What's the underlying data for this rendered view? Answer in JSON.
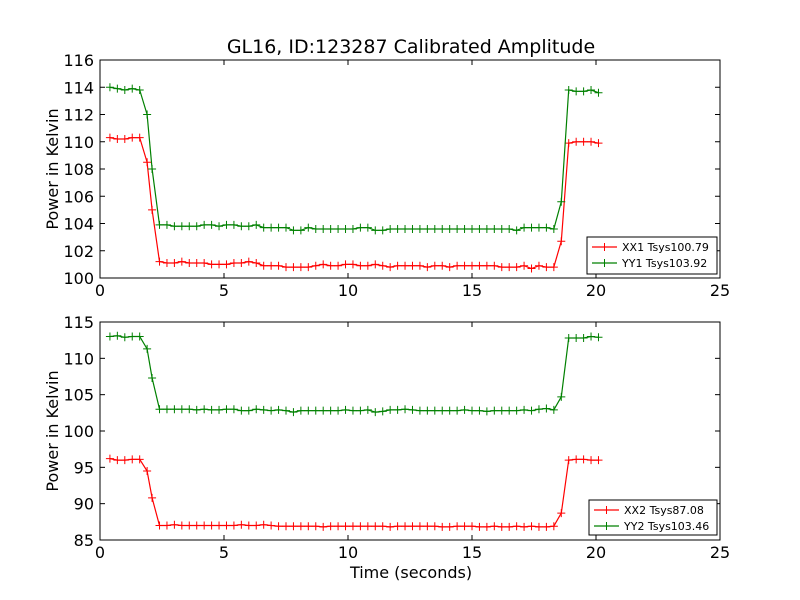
{
  "chart_data": [
    {
      "type": "line",
      "title": "GL16, ID:123287 Calibrated Amplitude",
      "xlabel": "",
      "ylabel": "Power in Kelvin",
      "xlim": [
        0,
        25
      ],
      "ylim": [
        100,
        116
      ],
      "xticks": [
        0,
        5,
        10,
        15,
        20,
        25
      ],
      "yticks": [
        100,
        102,
        104,
        106,
        108,
        110,
        112,
        114,
        116
      ],
      "grid": false,
      "legend_position": "lower-right",
      "x": [
        0.4,
        0.7,
        1.0,
        1.3,
        1.6,
        1.9,
        2.1,
        2.4,
        2.7,
        3.0,
        3.3,
        3.6,
        3.9,
        4.2,
        4.5,
        4.8,
        5.1,
        5.4,
        5.7,
        6.0,
        6.3,
        6.6,
        6.9,
        7.2,
        7.5,
        7.8,
        8.1,
        8.4,
        8.7,
        9.0,
        9.3,
        9.6,
        9.9,
        10.2,
        10.5,
        10.8,
        11.1,
        11.4,
        11.7,
        12.0,
        12.3,
        12.6,
        12.9,
        13.2,
        13.5,
        13.8,
        14.1,
        14.4,
        14.7,
        15.0,
        15.3,
        15.6,
        15.9,
        16.2,
        16.5,
        16.8,
        17.1,
        17.4,
        17.7,
        18.0,
        18.3,
        18.6,
        18.9,
        19.2,
        19.5,
        19.8,
        20.1
      ],
      "series": [
        {
          "name": "XX1 Tsys100.79",
          "color": "#ff0000",
          "values": [
            110.3,
            110.2,
            110.2,
            110.3,
            110.3,
            108.5,
            105.0,
            101.2,
            101.1,
            101.1,
            101.2,
            101.1,
            101.1,
            101.1,
            101.0,
            101.0,
            101.0,
            101.1,
            101.1,
            101.2,
            101.1,
            100.9,
            100.9,
            100.9,
            100.8,
            100.8,
            100.8,
            100.8,
            100.9,
            101.0,
            100.9,
            100.9,
            101.0,
            101.0,
            100.9,
            100.9,
            101.0,
            100.9,
            100.8,
            100.9,
            100.9,
            100.9,
            100.9,
            100.8,
            100.9,
            100.9,
            100.8,
            100.9,
            100.9,
            100.9,
            100.9,
            100.9,
            100.9,
            100.8,
            100.8,
            100.8,
            100.9,
            100.7,
            100.9,
            100.8,
            100.8,
            102.7,
            109.9,
            110.0,
            110.0,
            110.0,
            109.9
          ]
        },
        {
          "name": "YY1 Tsys103.92",
          "color": "#008000",
          "values": [
            114.0,
            113.9,
            113.8,
            113.9,
            113.8,
            112.0,
            108.0,
            103.9,
            103.9,
            103.8,
            103.8,
            103.8,
            103.8,
            103.9,
            103.9,
            103.8,
            103.9,
            103.9,
            103.8,
            103.8,
            103.9,
            103.7,
            103.7,
            103.7,
            103.7,
            103.5,
            103.5,
            103.7,
            103.6,
            103.6,
            103.6,
            103.6,
            103.6,
            103.6,
            103.7,
            103.7,
            103.5,
            103.5,
            103.6,
            103.6,
            103.6,
            103.6,
            103.6,
            103.6,
            103.6,
            103.6,
            103.6,
            103.6,
            103.6,
            103.6,
            103.6,
            103.6,
            103.6,
            103.6,
            103.6,
            103.5,
            103.7,
            103.7,
            103.7,
            103.7,
            103.6,
            105.6,
            113.8,
            113.7,
            113.7,
            113.8,
            113.6
          ]
        }
      ]
    },
    {
      "type": "line",
      "title": "",
      "xlabel": "Time (seconds)",
      "ylabel": "Power in Kelvin",
      "xlim": [
        0,
        25
      ],
      "ylim": [
        85,
        115
      ],
      "xticks": [
        0,
        5,
        10,
        15,
        20,
        25
      ],
      "yticks": [
        85,
        90,
        95,
        100,
        105,
        110,
        115
      ],
      "grid": false,
      "legend_position": "lower-right",
      "x": [
        0.4,
        0.7,
        1.0,
        1.3,
        1.6,
        1.9,
        2.1,
        2.4,
        2.7,
        3.0,
        3.3,
        3.6,
        3.9,
        4.2,
        4.5,
        4.8,
        5.1,
        5.4,
        5.7,
        6.0,
        6.3,
        6.6,
        6.9,
        7.2,
        7.5,
        7.8,
        8.1,
        8.4,
        8.7,
        9.0,
        9.3,
        9.6,
        9.9,
        10.2,
        10.5,
        10.8,
        11.1,
        11.4,
        11.7,
        12.0,
        12.3,
        12.6,
        12.9,
        13.2,
        13.5,
        13.8,
        14.1,
        14.4,
        14.7,
        15.0,
        15.3,
        15.6,
        15.9,
        16.2,
        16.5,
        16.8,
        17.1,
        17.4,
        17.7,
        18.0,
        18.3,
        18.6,
        18.9,
        19.2,
        19.5,
        19.8,
        20.1
      ],
      "series": [
        {
          "name": "XX2 Tsys87.08",
          "color": "#ff0000",
          "values": [
            96.2,
            96.0,
            96.0,
            96.1,
            96.1,
            94.5,
            90.8,
            87.0,
            87.0,
            87.1,
            87.0,
            87.0,
            87.0,
            87.0,
            87.0,
            87.0,
            87.0,
            87.0,
            87.1,
            87.0,
            87.0,
            87.1,
            87.0,
            86.9,
            86.9,
            86.9,
            86.9,
            86.9,
            86.9,
            86.8,
            86.9,
            86.9,
            86.9,
            86.9,
            86.9,
            86.9,
            86.9,
            86.9,
            86.8,
            86.9,
            86.9,
            86.9,
            86.9,
            86.9,
            86.9,
            86.8,
            86.8,
            86.9,
            86.9,
            86.9,
            86.8,
            86.8,
            86.9,
            86.8,
            86.8,
            86.9,
            86.8,
            86.9,
            86.8,
            86.8,
            86.9,
            88.7,
            96.0,
            96.1,
            96.1,
            96.0,
            96.0
          ]
        },
        {
          "name": "YY2 Tsys103.46",
          "color": "#008000",
          "values": [
            113.0,
            113.1,
            112.9,
            113.0,
            113.0,
            111.3,
            107.3,
            103.0,
            103.0,
            103.0,
            103.0,
            103.0,
            102.9,
            103.0,
            102.9,
            102.9,
            103.0,
            103.0,
            102.8,
            102.8,
            103.0,
            102.9,
            102.8,
            102.9,
            102.8,
            102.6,
            102.8,
            102.8,
            102.8,
            102.8,
            102.8,
            102.8,
            102.9,
            102.8,
            102.8,
            102.9,
            102.6,
            102.7,
            102.9,
            102.9,
            103.0,
            102.9,
            102.8,
            102.8,
            102.8,
            102.8,
            102.8,
            102.8,
            102.9,
            102.8,
            102.8,
            102.7,
            102.8,
            102.8,
            102.8,
            102.8,
            102.9,
            102.8,
            103.0,
            103.1,
            102.9,
            104.7,
            112.8,
            112.8,
            112.8,
            113.0,
            112.9
          ]
        }
      ]
    }
  ]
}
